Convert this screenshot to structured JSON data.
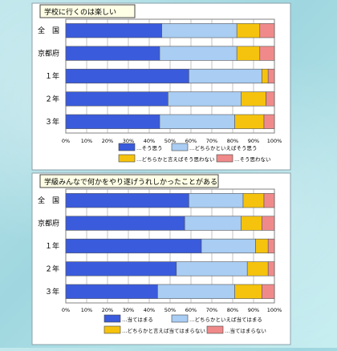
{
  "chart_data": [
    {
      "type": "bar",
      "stacked": true,
      "orientation": "horizontal",
      "percent": true,
      "title": "学校に行くのは楽しい",
      "categories": [
        "全国",
        "京都府",
        "1年",
        "2年",
        "3年"
      ],
      "category_labels": [
        "全　国",
        "京都府",
        "１年",
        "２年",
        "３年"
      ],
      "series": [
        {
          "name": "…そう思う",
          "color": "#3a5bdc",
          "values": [
            46,
            45,
            59,
            49,
            45
          ]
        },
        {
          "name": "…どちらかといえばそう思う",
          "color": "#a9cdf3",
          "values": [
            36,
            37,
            35,
            35,
            36
          ]
        },
        {
          "name": "…どちらかと言えばそう思わない",
          "color": "#f5c30d",
          "values": [
            11,
            11,
            3,
            12,
            14
          ]
        },
        {
          "name": "…そう思わない",
          "color": "#f08a8a",
          "values": [
            7,
            7,
            3,
            4,
            5
          ]
        }
      ],
      "xlim": [
        0,
        100
      ],
      "xticks": [
        "0%",
        "10%",
        "20%",
        "30%",
        "40%",
        "50%",
        "60%",
        "70%",
        "80%",
        "90%",
        "100%"
      ],
      "grid": true
    },
    {
      "type": "bar",
      "stacked": true,
      "orientation": "horizontal",
      "percent": true,
      "title": "学級みんなで何かをやり遂げうれしかったことがある",
      "categories": [
        "全国",
        "京都府",
        "1年",
        "2年",
        "3年"
      ],
      "category_labels": [
        "全　国",
        "京都府",
        "１年",
        "２年",
        "３年"
      ],
      "series": [
        {
          "name": "…当てはまる",
          "color": "#3a5bdc",
          "values": [
            59,
            57,
            65,
            53,
            44
          ]
        },
        {
          "name": "…どちらかといえば当てはまる",
          "color": "#a9cdf3",
          "values": [
            26,
            27,
            26,
            34,
            37
          ]
        },
        {
          "name": "…どちらかと言えば当てはまらない",
          "color": "#f5c30d",
          "values": [
            10,
            10,
            6,
            10,
            13
          ]
        },
        {
          "name": "…当てはまらない",
          "color": "#f08a8a",
          "values": [
            5,
            6,
            3,
            3,
            6
          ]
        }
      ],
      "xlim": [
        0,
        100
      ],
      "xticks": [
        "0%",
        "10%",
        "20%",
        "30%",
        "40%",
        "50%",
        "60%",
        "70%",
        "80%",
        "90%",
        "100%"
      ],
      "grid": true
    }
  ]
}
